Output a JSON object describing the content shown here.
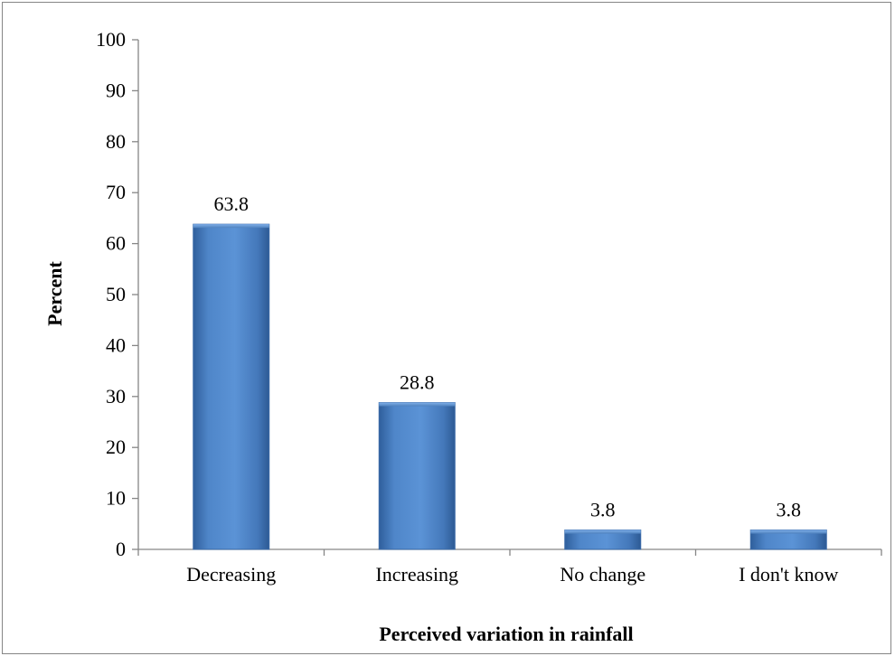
{
  "chart_data": {
    "type": "bar",
    "title": "",
    "xlabel": "Perceived variation in rainfall",
    "ylabel": "Percent",
    "categories": [
      "Decreasing",
      "Increasing",
      "No change",
      "I don't know"
    ],
    "values": [
      63.8,
      28.8,
      3.8,
      3.8
    ],
    "data_labels": [
      "63.8",
      "28.8",
      "3.8",
      "3.8"
    ],
    "ylim": [
      0,
      100
    ],
    "yticks": [
      0,
      10,
      20,
      30,
      40,
      50,
      60,
      70,
      80,
      90,
      100
    ],
    "grid": false,
    "legend": "none",
    "bar_color": "#4F81BD"
  }
}
